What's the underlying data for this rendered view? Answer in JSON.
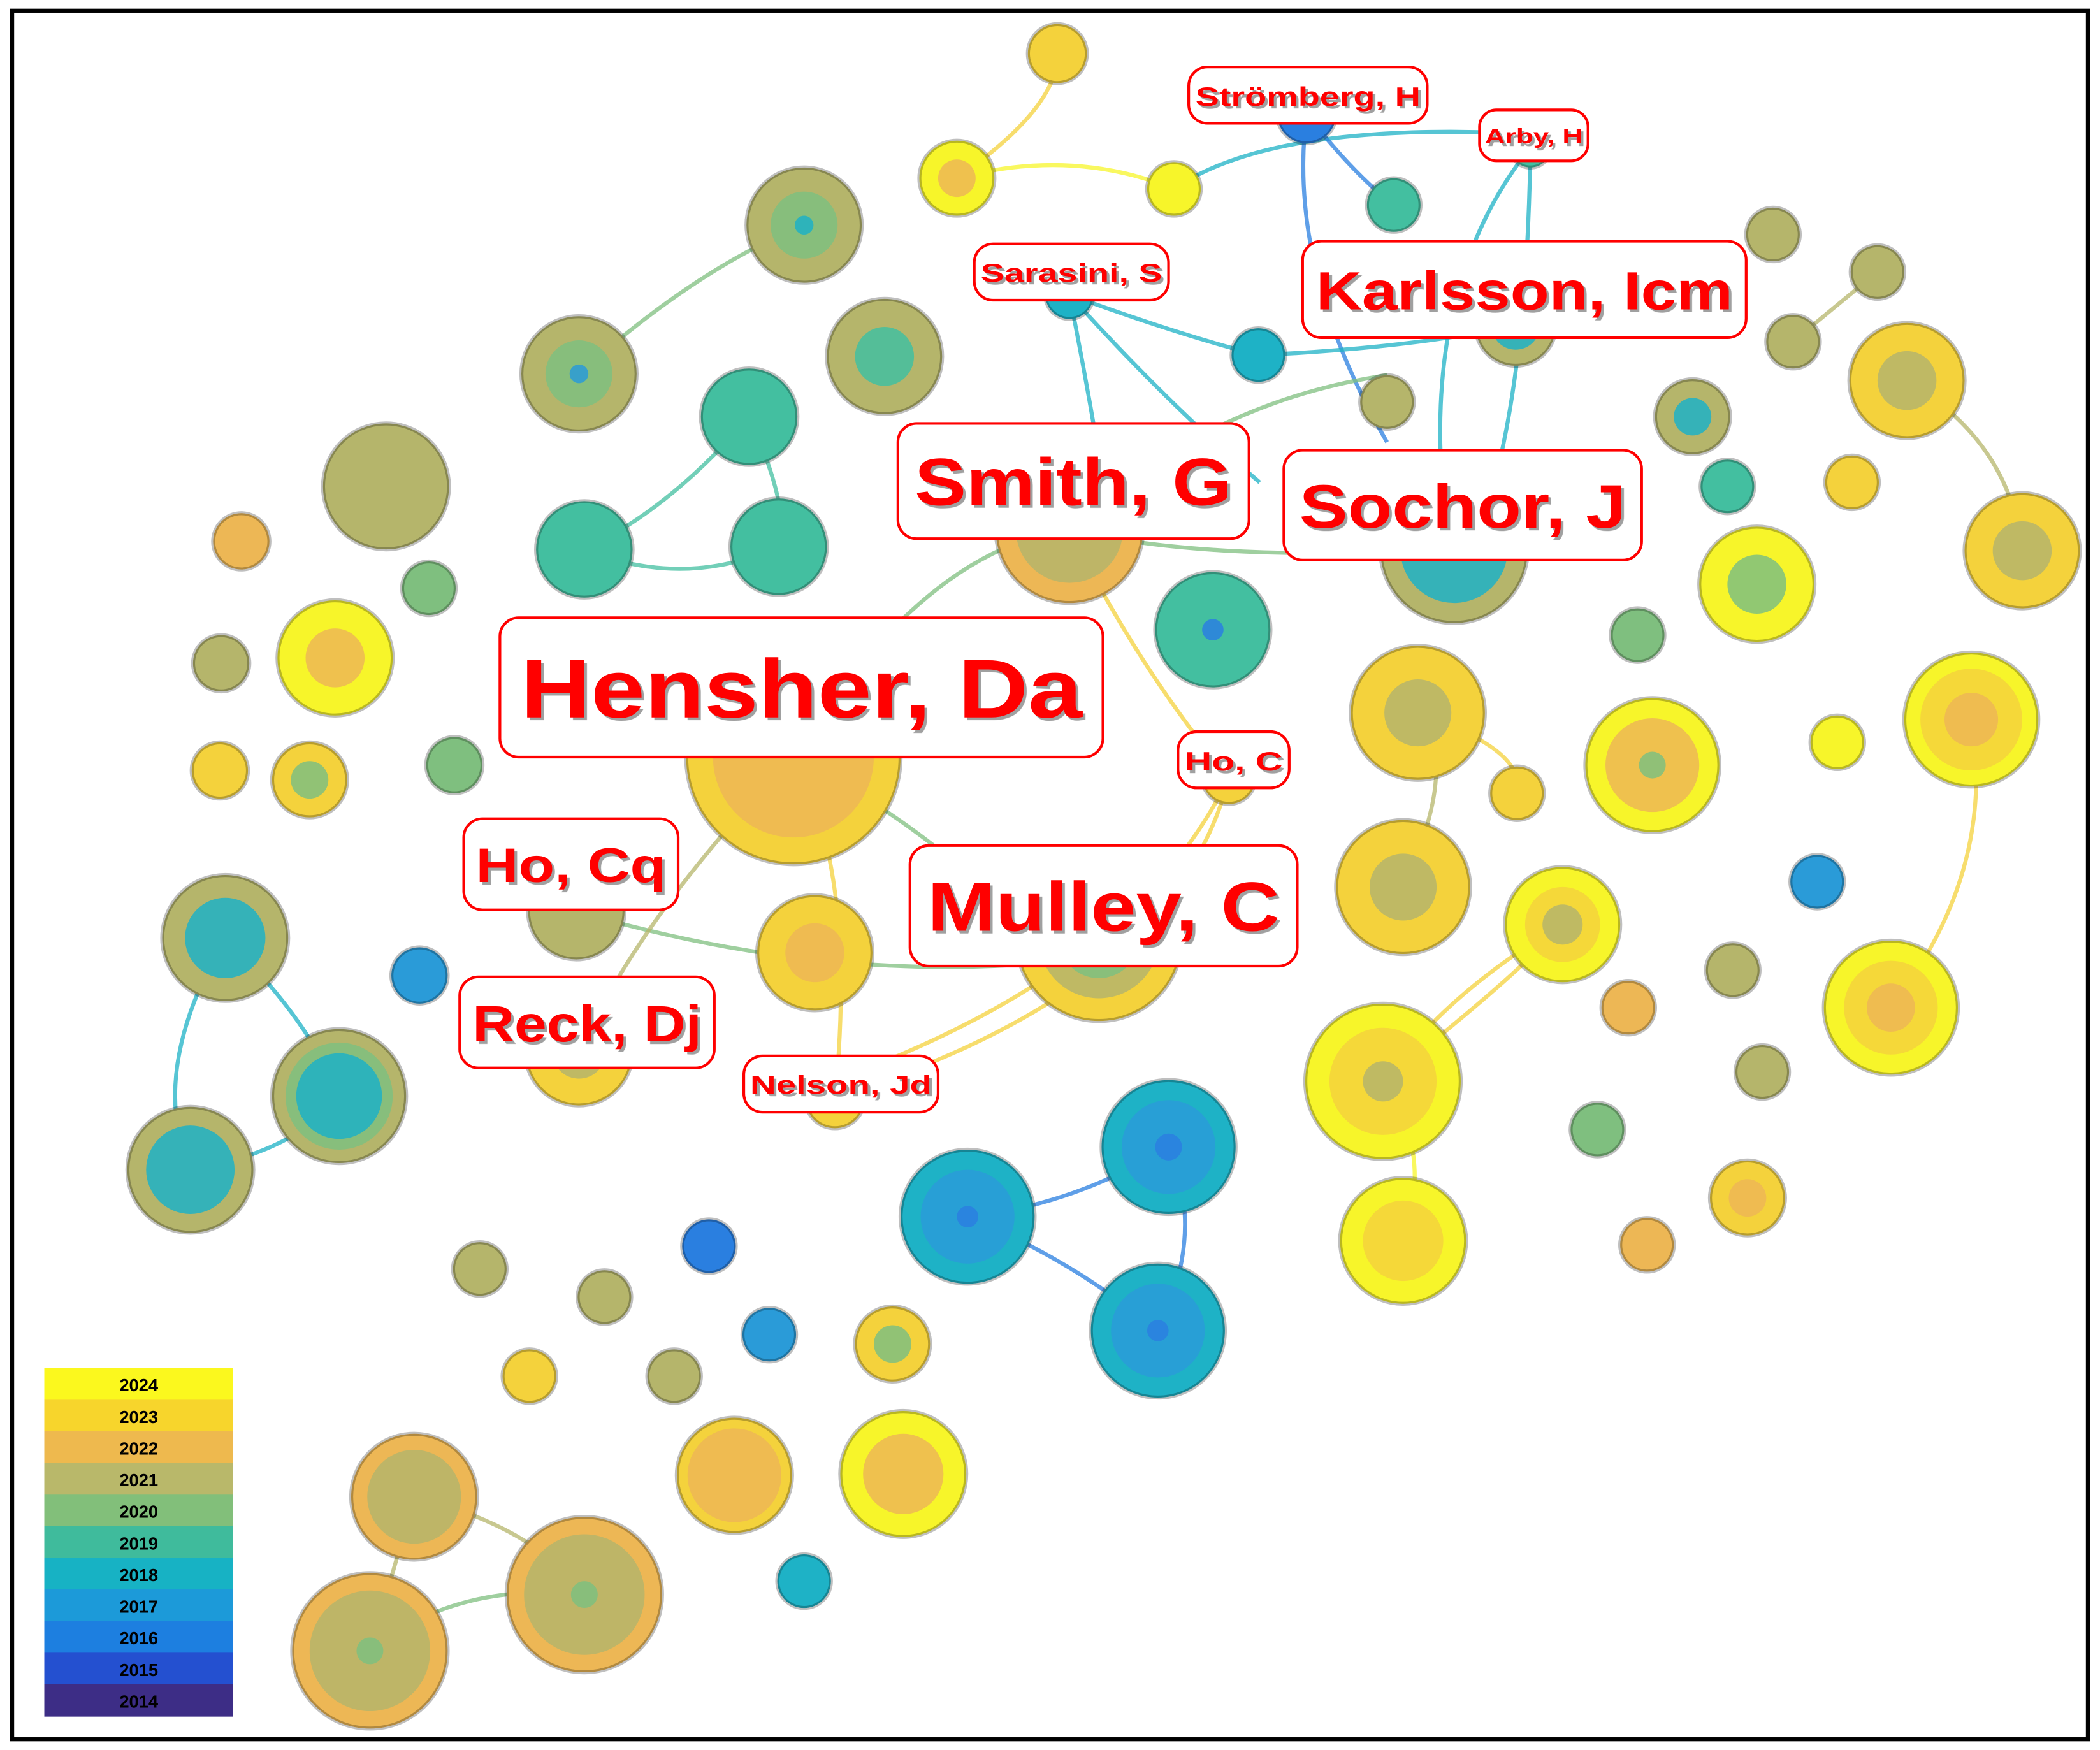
{
  "labels": [
    "Strömberg, H",
    "Arby, H",
    "Sarasini, S",
    "Karlsson, Icm",
    "Smith, G",
    "Sochor, J",
    "Hensher, Da",
    "Ho, C",
    "Ho, Cq",
    "Mulley, C",
    "Reck, Dj",
    "Nelson, Jd"
  ],
  "legend": {
    "years": [
      2024,
      2023,
      2022,
      2021,
      2020,
      2019,
      2018,
      2017,
      2016,
      2015,
      2014
    ]
  }
}
